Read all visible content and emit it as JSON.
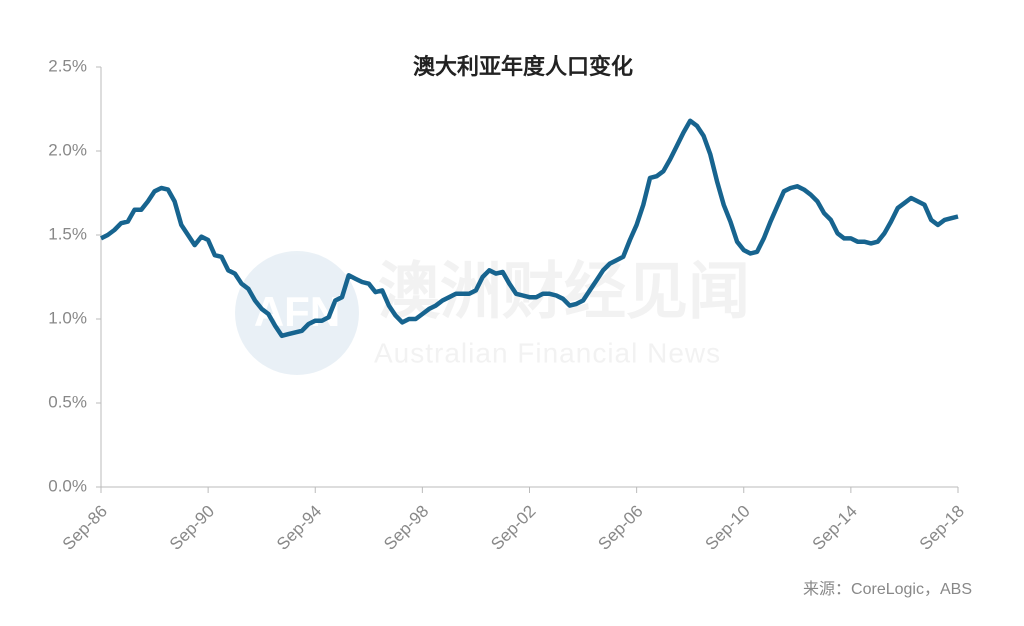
{
  "chart_data": {
    "type": "line",
    "title": "澳大利亚年度人口变化",
    "source": "来源：CoreLogic，ABS",
    "watermark": {
      "logo": "AFN",
      "chinese": "澳洲财经见闻",
      "english": "Australian Financial News"
    },
    "color": "#17648f",
    "categories": [
      "Sep-86",
      null,
      null,
      null,
      null,
      null,
      null,
      null,
      null,
      null,
      null,
      null,
      null,
      null,
      null,
      null,
      "Sep-90",
      null,
      null,
      null,
      null,
      null,
      null,
      null,
      null,
      null,
      null,
      null,
      null,
      null,
      null,
      null,
      "Sep-94",
      null,
      null,
      null,
      null,
      null,
      null,
      null,
      null,
      null,
      null,
      null,
      null,
      null,
      null,
      null,
      "Sep-98",
      null,
      null,
      null,
      null,
      null,
      null,
      null,
      null,
      null,
      null,
      null,
      null,
      null,
      null,
      null,
      "Sep-02",
      null,
      null,
      null,
      null,
      null,
      null,
      null,
      null,
      null,
      null,
      null,
      null,
      null,
      null,
      null,
      "Sep-06",
      null,
      null,
      null,
      null,
      null,
      null,
      null,
      null,
      null,
      null,
      null,
      null,
      null,
      null,
      null,
      "Sep-10",
      null,
      null,
      null,
      null,
      null,
      null,
      null,
      null,
      null,
      null,
      null,
      null,
      null,
      null,
      null,
      "Sep-14",
      null,
      null,
      null,
      null,
      null,
      null,
      null,
      null,
      null,
      null,
      null,
      null,
      null,
      null,
      null,
      "Sep-18"
    ],
    "values": [
      1.48,
      1.5,
      1.53,
      1.57,
      1.58,
      1.65,
      1.65,
      1.7,
      1.76,
      1.78,
      1.77,
      1.7,
      1.56,
      1.5,
      1.44,
      1.49,
      1.47,
      1.38,
      1.37,
      1.29,
      1.27,
      1.21,
      1.18,
      1.11,
      1.06,
      1.03,
      0.96,
      0.9,
      0.91,
      0.92,
      0.93,
      0.97,
      0.99,
      0.99,
      1.01,
      1.11,
      1.13,
      1.26,
      1.24,
      1.22,
      1.21,
      1.16,
      1.17,
      1.08,
      1.02,
      0.98,
      1.0,
      1.0,
      1.03,
      1.06,
      1.08,
      1.11,
      1.13,
      1.15,
      1.15,
      1.15,
      1.17,
      1.25,
      1.29,
      1.27,
      1.28,
      1.21,
      1.15,
      1.14,
      1.13,
      1.13,
      1.15,
      1.15,
      1.14,
      1.12,
      1.08,
      1.09,
      1.11,
      1.17,
      1.23,
      1.29,
      1.33,
      1.35,
      1.37,
      1.47,
      1.56,
      1.68,
      1.84,
      1.85,
      1.88,
      1.95,
      2.03,
      2.11,
      2.18,
      2.15,
      2.09,
      1.98,
      1.82,
      1.68,
      1.58,
      1.46,
      1.41,
      1.39,
      1.4,
      1.48,
      1.58,
      1.67,
      1.76,
      1.78,
      1.79,
      1.77,
      1.74,
      1.7,
      1.63,
      1.59,
      1.51,
      1.48,
      1.48,
      1.46,
      1.46,
      1.45,
      1.46,
      1.51,
      1.58,
      1.66,
      1.69,
      1.72,
      1.7,
      1.68,
      1.59,
      1.56,
      1.59,
      1.6,
      1.61
    ],
    "ylim": [
      0,
      2.5
    ],
    "yticks": [
      {
        "value": 0,
        "label": "0.0%"
      },
      {
        "value": 0.5,
        "label": "0.5%"
      },
      {
        "value": 1,
        "label": "1.0%"
      },
      {
        "value": 1.5,
        "label": "1.5%"
      },
      {
        "value": 2,
        "label": "2.0%"
      },
      {
        "value": 2.5,
        "label": "2.5%"
      }
    ],
    "grid": false
  }
}
